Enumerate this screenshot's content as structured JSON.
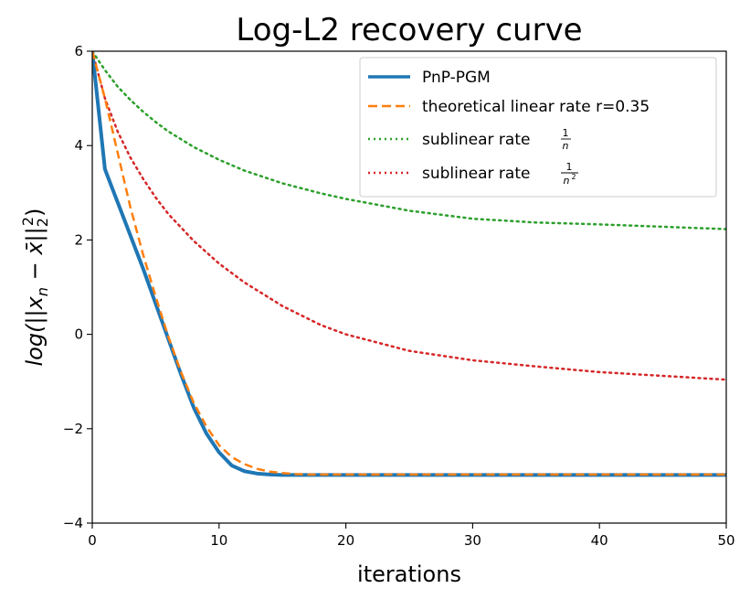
{
  "chart_data": {
    "type": "line",
    "title": "Log-L2 recovery curve",
    "xlabel": "iterations",
    "ylabel_parts": {
      "prefix": "log(||x",
      "sub_n": "n",
      "minus": " − ",
      "xbar": "x̄",
      "close": "||",
      "sub2": "2",
      "sup2": "2",
      "end": ")"
    },
    "xlim": [
      0,
      50
    ],
    "ylim": [
      -4,
      6
    ],
    "x_ticks": [
      0,
      10,
      20,
      30,
      40,
      50
    ],
    "x_tick_labels": [
      "0",
      "10",
      "20",
      "30",
      "40",
      "50"
    ],
    "y_ticks": [
      -4,
      -2,
      0,
      2,
      4,
      6
    ],
    "y_tick_labels": [
      "−4",
      "−2",
      "0",
      "2",
      "4",
      "6"
    ],
    "legend_position": "top-right",
    "series": [
      {
        "name": "PnP-PGM",
        "color": "#1f77b4",
        "style": "solid",
        "x": [
          0,
          1,
          2,
          3,
          4,
          5,
          6,
          7,
          8,
          9,
          10,
          11,
          12,
          13,
          14,
          15,
          16,
          17,
          18,
          19,
          20,
          25,
          30,
          35,
          40,
          45,
          50
        ],
        "y": [
          6.0,
          3.5,
          2.8,
          2.1,
          1.4,
          0.65,
          -0.1,
          -0.85,
          -1.55,
          -2.1,
          -2.5,
          -2.78,
          -2.9,
          -2.95,
          -2.97,
          -2.98,
          -2.98,
          -2.98,
          -2.98,
          -2.98,
          -2.98,
          -2.98,
          -2.98,
          -2.98,
          -2.98,
          -2.98,
          -2.98
        ]
      },
      {
        "name_prefix": "theoretical linear rate r=0.35",
        "color": "#ff7f0e",
        "style": "dashed",
        "x": [
          0,
          1,
          2,
          3,
          4,
          5,
          6,
          7,
          8,
          9,
          10,
          11,
          12,
          13,
          14,
          15,
          16,
          17,
          18,
          19,
          20,
          25,
          30,
          35,
          40,
          45,
          50
        ],
        "y": [
          6.0,
          5.0,
          3.85,
          2.7,
          1.7,
          0.8,
          -0.05,
          -0.8,
          -1.45,
          -1.95,
          -2.35,
          -2.6,
          -2.75,
          -2.85,
          -2.91,
          -2.94,
          -2.96,
          -2.97,
          -2.97,
          -2.97,
          -2.97,
          -2.97,
          -2.97,
          -2.97,
          -2.97,
          -2.97,
          -2.97
        ]
      },
      {
        "name_prefix": "sublinear rate",
        "frac_num": "1",
        "frac_den": "n",
        "color": "#2ca02c",
        "style": "dotted",
        "x": [
          0,
          1,
          2,
          3,
          4,
          5,
          6,
          8,
          10,
          12,
          15,
          18,
          20,
          25,
          30,
          35,
          40,
          45,
          50
        ],
        "y": [
          6.0,
          5.6,
          5.25,
          4.97,
          4.72,
          4.5,
          4.3,
          3.97,
          3.7,
          3.47,
          3.2,
          2.99,
          2.87,
          2.62,
          2.45,
          2.37,
          2.33,
          2.28,
          2.23
        ]
      },
      {
        "name_prefix": "sublinear rate",
        "frac_num": "1",
        "frac_den": "n",
        "frac_den_sup": "2",
        "color": "#d62728",
        "style": "dotted",
        "x": [
          0,
          1,
          2,
          3,
          4,
          5,
          6,
          8,
          10,
          12,
          15,
          18,
          20,
          25,
          30,
          35,
          40,
          45,
          50
        ],
        "y": [
          6.0,
          5.0,
          4.3,
          3.75,
          3.3,
          2.9,
          2.55,
          1.98,
          1.5,
          1.1,
          0.6,
          0.2,
          0.0,
          -0.35,
          -0.55,
          -0.68,
          -0.8,
          -0.88,
          -0.96
        ]
      }
    ]
  }
}
